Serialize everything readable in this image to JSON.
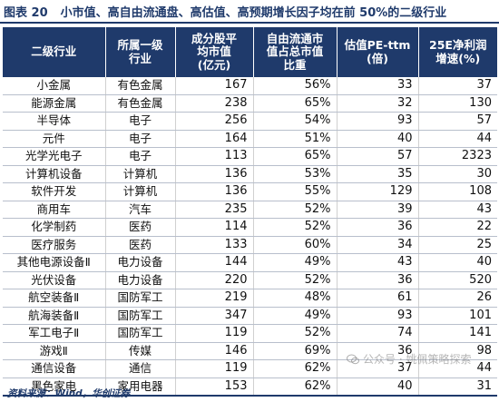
{
  "title": {
    "label": "图表 20",
    "text": "小市值、高自由流通盘、高估值、高预期增长因子均在前 50%的二级行业"
  },
  "table": {
    "headers": [
      "二级行业",
      "所属一级\n行业",
      "成分股平\n均市值\n(亿元)",
      "自由流通市\n值占总市值\n比重",
      "估值PE-ttm\n(倍)",
      "25E净利润\n增速(%)"
    ],
    "rows": [
      [
        "小金属",
        "有色金属",
        "167",
        "56%",
        "33",
        "37"
      ],
      [
        "能源金属",
        "有色金属",
        "238",
        "65%",
        "32",
        "130"
      ],
      [
        "半导体",
        "电子",
        "256",
        "54%",
        "93",
        "57"
      ],
      [
        "元件",
        "电子",
        "164",
        "51%",
        "40",
        "44"
      ],
      [
        "光学光电子",
        "电子",
        "113",
        "65%",
        "57",
        "2323"
      ],
      [
        "计算机设备",
        "计算机",
        "136",
        "53%",
        "35",
        "30"
      ],
      [
        "软件开发",
        "计算机",
        "136",
        "55%",
        "129",
        "108"
      ],
      [
        "商用车",
        "汽车",
        "235",
        "52%",
        "39",
        "43"
      ],
      [
        "化学制药",
        "医药",
        "114",
        "52%",
        "36",
        "22"
      ],
      [
        "医疗服务",
        "医药",
        "133",
        "60%",
        "34",
        "25"
      ],
      [
        "其他电源设备Ⅱ",
        "电力设备",
        "144",
        "49%",
        "43",
        "40"
      ],
      [
        "光伏设备",
        "电力设备",
        "220",
        "52%",
        "36",
        "520"
      ],
      [
        "航空装备Ⅱ",
        "国防军工",
        "219",
        "48%",
        "61",
        "26"
      ],
      [
        "航海装备Ⅱ",
        "国防军工",
        "347",
        "49%",
        "93",
        "101"
      ],
      [
        "军工电子Ⅱ",
        "国防军工",
        "119",
        "52%",
        "74",
        "141"
      ],
      [
        "游戏Ⅱ",
        "传媒",
        "146",
        "69%",
        "36",
        "98"
      ],
      [
        "通信设备",
        "通信",
        "119",
        "62%",
        "37",
        "44"
      ],
      [
        "黑色家电",
        "家用电器",
        "153",
        "62%",
        "40",
        "31"
      ]
    ]
  },
  "source": "资料来源：Wind，华创证券",
  "watermark": "公众号 · 姚佩策略探索"
}
